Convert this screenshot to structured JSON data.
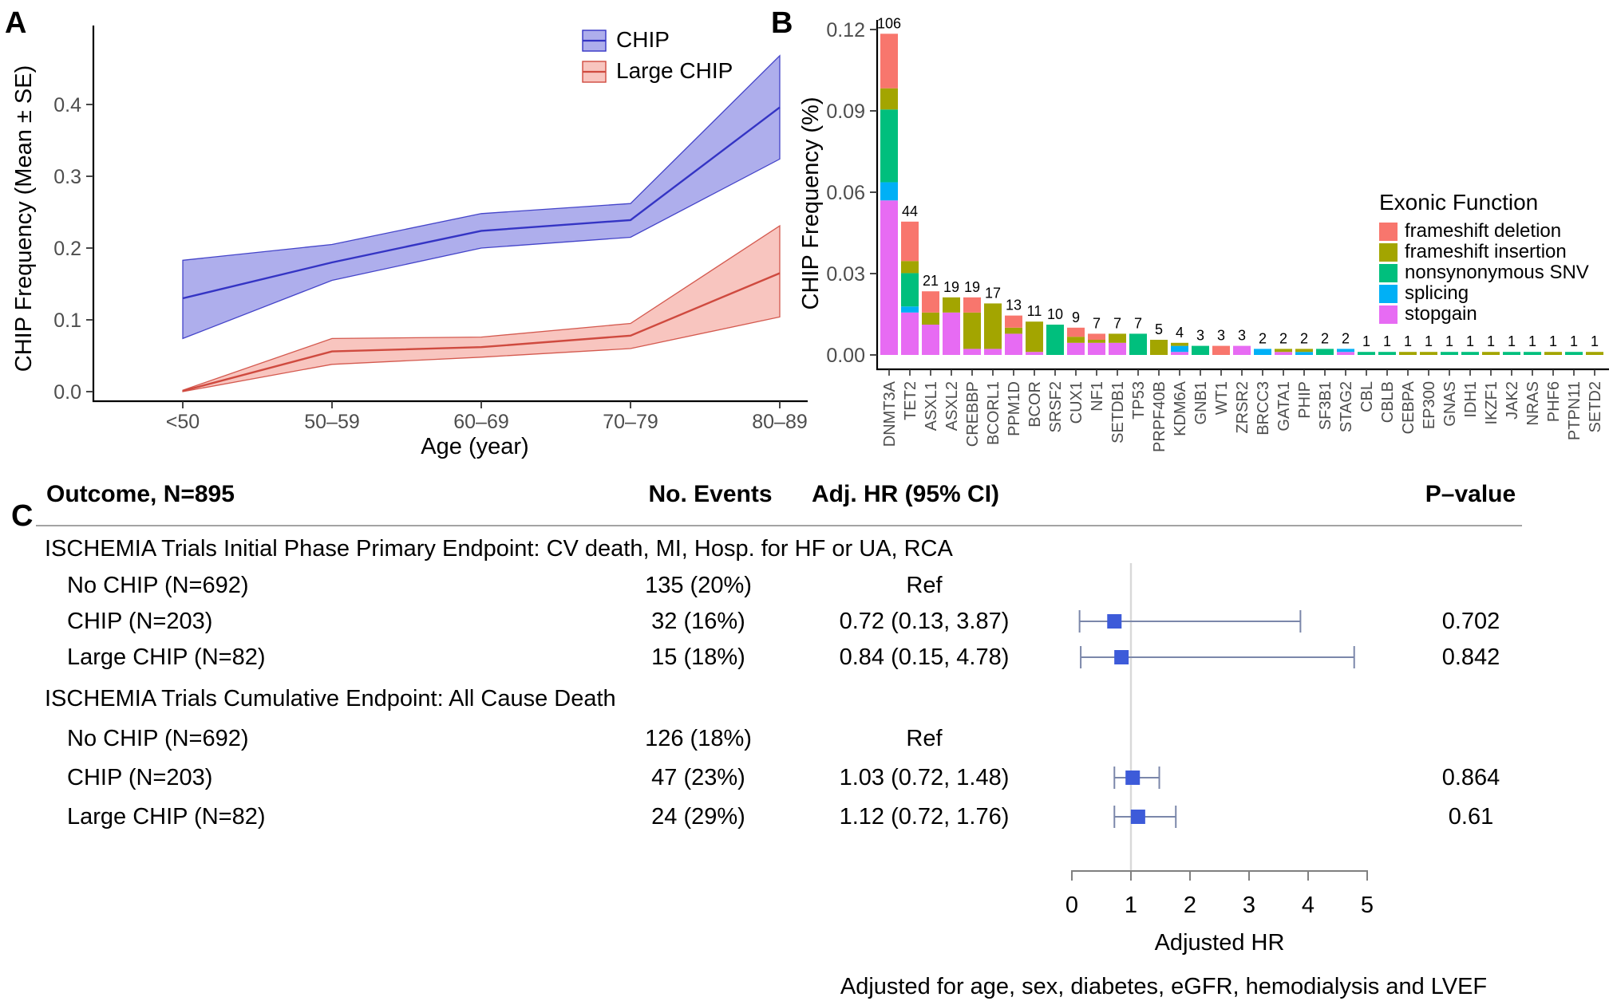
{
  "chart_data": [
    {
      "id": "A",
      "type": "area",
      "xlabel": "Age (year)",
      "ylabel": "CHIP Frequency (Mean ± SE)",
      "categories": [
        "<50",
        "50–59",
        "60–69",
        "70–79",
        "80–89"
      ],
      "yticks": [
        0.0,
        0.1,
        0.2,
        0.3,
        0.4
      ],
      "ylim": [
        0,
        0.48
      ],
      "grid": false,
      "legend_position": "top-right-inside",
      "axis_text_color": "#4d4d4d",
      "series": [
        {
          "name": "CHIP",
          "line_color": "#3434c4",
          "fill_color": "#aeaeec",
          "mean": [
            0.13,
            0.18,
            0.224,
            0.239,
            0.396
          ],
          "lower": [
            0.074,
            0.155,
            0.2,
            0.215,
            0.324
          ],
          "upper": [
            0.183,
            0.205,
            0.248,
            0.262,
            0.468
          ]
        },
        {
          "name": "Large CHIP",
          "line_color": "#cf4a3f",
          "fill_color": "#f8c5bf",
          "mean": [
            0.001,
            0.056,
            0.062,
            0.078,
            0.165
          ],
          "lower": [
            0.0,
            0.038,
            0.048,
            0.06,
            0.104
          ],
          "upper": [
            0.002,
            0.074,
            0.076,
            0.095,
            0.231
          ]
        }
      ]
    },
    {
      "id": "B",
      "type": "bar",
      "stacked": true,
      "ylabel": "CHIP Frequency (%)",
      "ytick_labels": [
        "0.00",
        "0.03",
        "0.06",
        "0.09",
        "0.12"
      ],
      "ylim": [
        0,
        0.125
      ],
      "grid": false,
      "denominator": 895,
      "axis_text_color": "#4d4d4d",
      "legend_title": "Exonic Function",
      "legend_entries": [
        {
          "label": "frameshift deletion",
          "color": "#F8766D"
        },
        {
          "label": "frameshift insertion",
          "color": "#A3A500"
        },
        {
          "label": "nonsynonymous SNV",
          "color": "#00BF7D"
        },
        {
          "label": "splicing",
          "color": "#00B0F6"
        },
        {
          "label": "stopgain",
          "color": "#E76BF3"
        }
      ],
      "stack_order_bottom_to_top": [
        "stopgain",
        "splicing",
        "nonsynonymous SNV",
        "frameshift insertion",
        "frameshift deletion"
      ],
      "genes": [
        {
          "name": "DNMT3A",
          "total": 106,
          "segments": {
            "stopgain": 51,
            "splicing": 6,
            "nonsynonymous SNV": 24,
            "frameshift insertion": 7,
            "frameshift deletion": 18
          }
        },
        {
          "name": "TET2",
          "total": 44,
          "segments": {
            "stopgain": 14,
            "splicing": 2,
            "nonsynonymous SNV": 11,
            "frameshift insertion": 4,
            "frameshift deletion": 13
          }
        },
        {
          "name": "ASXL1",
          "total": 21,
          "segments": {
            "stopgain": 10,
            "frameshift insertion": 4,
            "frameshift deletion": 7
          }
        },
        {
          "name": "ASXL2",
          "total": 19,
          "segments": {
            "stopgain": 14,
            "frameshift insertion": 5
          }
        },
        {
          "name": "CREBBP",
          "total": 19,
          "segments": {
            "stopgain": 2,
            "frameshift insertion": 12,
            "frameshift deletion": 5
          }
        },
        {
          "name": "BCORL1",
          "total": 17,
          "segments": {
            "stopgain": 2,
            "frameshift insertion": 15
          }
        },
        {
          "name": "PPM1D",
          "total": 13,
          "segments": {
            "stopgain": 7,
            "frameshift insertion": 2,
            "frameshift deletion": 4
          }
        },
        {
          "name": "BCOR",
          "total": 11,
          "segments": {
            "stopgain": 1,
            "frameshift insertion": 10
          }
        },
        {
          "name": "SRSF2",
          "total": 10,
          "segments": {
            "nonsynonymous SNV": 10
          }
        },
        {
          "name": "CUX1",
          "total": 9,
          "segments": {
            "stopgain": 4,
            "frameshift insertion": 2,
            "frameshift deletion": 3
          }
        },
        {
          "name": "NF1",
          "total": 7,
          "segments": {
            "stopgain": 4,
            "frameshift insertion": 1,
            "frameshift deletion": 2
          }
        },
        {
          "name": "SETDB1",
          "total": 7,
          "segments": {
            "stopgain": 4,
            "frameshift insertion": 3
          }
        },
        {
          "name": "TP53",
          "total": 7,
          "segments": {
            "nonsynonymous SNV": 7
          }
        },
        {
          "name": "PRPF40B",
          "total": 5,
          "segments": {
            "frameshift insertion": 5
          }
        },
        {
          "name": "KDM6A",
          "total": 4,
          "segments": {
            "stopgain": 1,
            "splicing": 2,
            "frameshift insertion": 1
          }
        },
        {
          "name": "GNB1",
          "total": 3,
          "segments": {
            "nonsynonymous SNV": 3
          }
        },
        {
          "name": "WT1",
          "total": 3,
          "segments": {
            "frameshift deletion": 3
          }
        },
        {
          "name": "ZRSR2",
          "total": 3,
          "segments": {
            "stopgain": 3
          }
        },
        {
          "name": "BRCC3",
          "total": 2,
          "segments": {
            "splicing": 2
          }
        },
        {
          "name": "GATA1",
          "total": 2,
          "segments": {
            "stopgain": 1,
            "frameshift insertion": 1
          }
        },
        {
          "name": "PHIP",
          "total": 2,
          "segments": {
            "splicing": 1,
            "frameshift insertion": 1
          }
        },
        {
          "name": "SF3B1",
          "total": 2,
          "segments": {
            "nonsynonymous SNV": 2
          }
        },
        {
          "name": "STAG2",
          "total": 2,
          "segments": {
            "stopgain": 1,
            "splicing": 1
          }
        },
        {
          "name": "CBL",
          "total": 1,
          "segments": {
            "nonsynonymous SNV": 1
          }
        },
        {
          "name": "CBLB",
          "total": 1,
          "segments": {
            "nonsynonymous SNV": 1
          }
        },
        {
          "name": "CEBPA",
          "total": 1,
          "segments": {
            "frameshift insertion": 1
          }
        },
        {
          "name": "EP300",
          "total": 1,
          "segments": {
            "frameshift insertion": 1
          }
        },
        {
          "name": "GNAS",
          "total": 1,
          "segments": {
            "nonsynonymous SNV": 1
          }
        },
        {
          "name": "IDH1",
          "total": 1,
          "segments": {
            "nonsynonymous SNV": 1
          }
        },
        {
          "name": "IKZF1",
          "total": 1,
          "segments": {
            "frameshift insertion": 1
          }
        },
        {
          "name": "JAK2",
          "total": 1,
          "segments": {
            "nonsynonymous SNV": 1
          }
        },
        {
          "name": "NRAS",
          "total": 1,
          "segments": {
            "nonsynonymous SNV": 1
          }
        },
        {
          "name": "PHF6",
          "total": 1,
          "segments": {
            "frameshift insertion": 1
          }
        },
        {
          "name": "PTPN11",
          "total": 1,
          "segments": {
            "nonsynonymous SNV": 1
          }
        },
        {
          "name": "SETD2",
          "total": 1,
          "segments": {
            "frameshift insertion": 1
          }
        }
      ]
    },
    {
      "id": "C",
      "type": "table",
      "columns": [
        "Outcome, N=895",
        "No. Events",
        "Adj. HR (95% CI)",
        "P–value"
      ],
      "sections": [
        {
          "header": "ISCHEMIA Trials Initial Phase Primary Endpoint: CV death, MI, Hosp. for HF or UA, RCA",
          "rows": [
            {
              "label": "No CHIP (N=692)",
              "events": "135 (20%)",
              "hr_text": "Ref",
              "hr": null,
              "lo": null,
              "hi": null,
              "p": ""
            },
            {
              "label": "CHIP (N=203)",
              "events": "32 (16%)",
              "hr_text": "0.72 (0.13, 3.87)",
              "hr": 0.72,
              "lo": 0.13,
              "hi": 3.87,
              "p": "0.702"
            },
            {
              "label": "Large CHIP (N=82)",
              "events": "15 (18%)",
              "hr_text": "0.84 (0.15, 4.78)",
              "hr": 0.84,
              "lo": 0.15,
              "hi": 4.78,
              "p": "0.842"
            }
          ]
        },
        {
          "header": "ISCHEMIA Trials Cumulative Endpoint: All Cause Death",
          "rows": [
            {
              "label": "No CHIP (N=692)",
              "events": "126 (18%)",
              "hr_text": "Ref",
              "hr": null,
              "lo": null,
              "hi": null,
              "p": ""
            },
            {
              "label": "CHIP (N=203)",
              "events": "47 (23%)",
              "hr_text": "1.03 (0.72, 1.48)",
              "hr": 1.03,
              "lo": 0.72,
              "hi": 1.48,
              "p": "0.864"
            },
            {
              "label": "Large CHIP (N=82)",
              "events": "24 (29%)",
              "hr_text": "1.12 (0.72, 1.76)",
              "hr": 1.12,
              "lo": 0.72,
              "hi": 1.76,
              "p": "0.61"
            }
          ]
        }
      ],
      "axis": {
        "label": "Adjusted HR",
        "ticks": [
          0,
          1,
          2,
          3,
          4,
          5
        ],
        "ref_line": 1
      },
      "footnote": "Adjusted for age, sex, diabetes, eGFR, hemodialysis and LVEF",
      "marker_color": "#3D5BD9",
      "whisker_color": "#7b87aa",
      "ref_line_color": "#d9d9d9"
    }
  ]
}
